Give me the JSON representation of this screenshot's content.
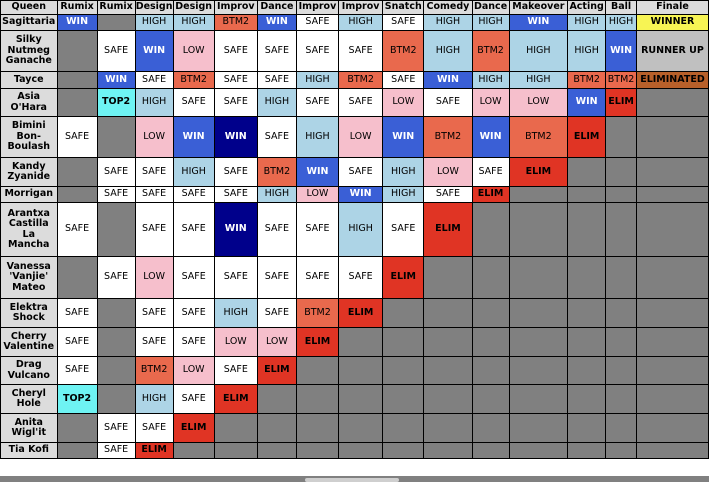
{
  "headers": [
    "Queen",
    "Rumix",
    "Rumix",
    "Design",
    "Design",
    "Improv",
    "Dance",
    "Improv",
    "Improv",
    "Snatch",
    "Comedy",
    "Dance",
    "Makeover",
    "Acting",
    "Ball",
    "Finale"
  ],
  "col_widths": [
    55,
    39,
    37,
    37,
    40,
    42,
    38,
    41,
    43,
    40,
    47,
    36,
    57,
    37,
    30,
    70
  ],
  "rows": [
    {
      "name": "Sagittaria",
      "h": 16,
      "cells": [
        "WIN",
        "GRAY",
        "HIGH",
        "HIGH",
        "BTM2",
        "WIN",
        "SAFE",
        "HIGH",
        "SAFE",
        "HIGH",
        "HIGH",
        "WIN",
        "HIGH",
        "HIGH",
        "WINNER"
      ]
    },
    {
      "name": "Silky\nNutmeg\nGanache",
      "h": 41,
      "cells": [
        "GRAY",
        "SAFE",
        "WIN",
        "LOW",
        "SAFE",
        "SAFE",
        "SAFE",
        "SAFE",
        "BTM2",
        "HIGH",
        "BTM2",
        "HIGH",
        "HIGH",
        "WIN",
        "RUNNER UP"
      ]
    },
    {
      "name": "Tayce",
      "h": 17,
      "cells": [
        "GRAY",
        "WIN",
        "SAFE",
        "BTM2",
        "SAFE",
        "SAFE",
        "HIGH",
        "BTM2",
        "SAFE",
        "WIN",
        "HIGH",
        "HIGH",
        "BTM2",
        "BTM2",
        "ELIMINATED"
      ]
    },
    {
      "name": "Asia\nO'Hara",
      "h": 28,
      "cells": [
        "GRAY",
        "TOP2",
        "HIGH",
        "SAFE",
        "SAFE",
        "HIGH",
        "SAFE",
        "SAFE",
        "LOW",
        "SAFE",
        "LOW",
        "LOW",
        "WIN",
        "ELIM",
        "GRAY"
      ]
    },
    {
      "name": "Bimini\nBon-\nBoulash",
      "h": 41,
      "cells": [
        "SAFE",
        "GRAY",
        "LOW",
        "WIN",
        "STARWIN",
        "SAFE",
        "HIGH",
        "LOW",
        "WIN",
        "BTM2",
        "WIN",
        "BTM2",
        "ELIM",
        "GRAY",
        "GRAY"
      ]
    },
    {
      "name": "Kandy\nZyanide",
      "h": 29,
      "cells": [
        "GRAY",
        "SAFE",
        "SAFE",
        "HIGH",
        "SAFE",
        "BTM2",
        "WIN",
        "SAFE",
        "HIGH",
        "LOW",
        "SAFE",
        "ELIM",
        "GRAY",
        "GRAY",
        "GRAY"
      ]
    },
    {
      "name": "Morrigan",
      "h": 16,
      "cells": [
        "GRAY",
        "SAFE",
        "SAFE",
        "SAFE",
        "SAFE",
        "HIGH",
        "LOW",
        "WIN",
        "HIGH",
        "SAFE",
        "ELIM",
        "GRAY",
        "GRAY",
        "GRAY",
        "GRAY"
      ]
    },
    {
      "name": "Arantxa\nCastilla\nLa\nMancha",
      "h": 54,
      "cells": [
        "SAFE",
        "GRAY",
        "SAFE",
        "SAFE",
        "STARWIN",
        "SAFE",
        "SAFE",
        "HIGH",
        "SAFE",
        "ELIM",
        "GRAY",
        "GRAY",
        "GRAY",
        "GRAY",
        "GRAY"
      ]
    },
    {
      "name": "Vanessa\n'Vanjie'\nMateo",
      "h": 42,
      "cells": [
        "GRAY",
        "SAFE",
        "LOW",
        "SAFE",
        "SAFE",
        "SAFE",
        "SAFE",
        "SAFE",
        "ELIM",
        "GRAY",
        "GRAY",
        "GRAY",
        "GRAY",
        "GRAY",
        "GRAY"
      ]
    },
    {
      "name": "Elektra\nShock",
      "h": 29,
      "cells": [
        "SAFE",
        "GRAY",
        "SAFE",
        "SAFE",
        "HIGH",
        "SAFE",
        "BTM2",
        "ELIM",
        "GRAY",
        "GRAY",
        "GRAY",
        "GRAY",
        "GRAY",
        "GRAY",
        "GRAY"
      ]
    },
    {
      "name": "Cherry\nValentine",
      "h": 29,
      "cells": [
        "SAFE",
        "GRAY",
        "SAFE",
        "SAFE",
        "LOW",
        "LOW",
        "ELIM",
        "GRAY",
        "GRAY",
        "GRAY",
        "GRAY",
        "GRAY",
        "GRAY",
        "GRAY",
        "GRAY"
      ]
    },
    {
      "name": "Drag\nVulcano",
      "h": 28,
      "cells": [
        "SAFE",
        "GRAY",
        "BTM2",
        "LOW",
        "SAFE",
        "ELIM",
        "GRAY",
        "GRAY",
        "GRAY",
        "GRAY",
        "GRAY",
        "GRAY",
        "GRAY",
        "GRAY",
        "GRAY"
      ]
    },
    {
      "name": "Cheryl\nHole",
      "h": 29,
      "cells": [
        "TOP2",
        "GRAY",
        "HIGH",
        "SAFE",
        "ELIM",
        "GRAY",
        "GRAY",
        "GRAY",
        "GRAY",
        "GRAY",
        "GRAY",
        "GRAY",
        "GRAY",
        "GRAY",
        "GRAY"
      ]
    },
    {
      "name": "Anita\nWigl'it",
      "h": 29,
      "cells": [
        "GRAY",
        "SAFE",
        "SAFE",
        "ELIM",
        "GRAY",
        "GRAY",
        "GRAY",
        "GRAY",
        "GRAY",
        "GRAY",
        "GRAY",
        "GRAY",
        "GRAY",
        "GRAY",
        "GRAY"
      ]
    },
    {
      "name": "Tia Kofi",
      "h": 16,
      "cells": [
        "GRAY",
        "SAFE",
        "ELIM",
        "GRAY",
        "GRAY",
        "GRAY",
        "GRAY",
        "GRAY",
        "GRAY",
        "GRAY",
        "GRAY",
        "GRAY",
        "GRAY",
        "GRAY",
        "GRAY"
      ]
    }
  ],
  "labels": {
    "WIN": "WIN",
    "STARWIN": "WIN",
    "TOP2": "TOP2",
    "HIGH": "HIGH",
    "SAFE": "SAFE",
    "LOW": "LOW",
    "BTM2": "BTM2",
    "ELIM": "ELIM",
    "GRAY": "",
    "WINNER": "WINNER",
    "RUNNER UP": "RUNNER UP",
    "ELIMINATED": "ELIMINATED"
  },
  "colors": {
    "win": "#3a5fd6",
    "star_win": "#00008b",
    "top2": "#6ef3f3",
    "high": "#add4e6",
    "safe": "#ffffff",
    "low": "#f6bfcc",
    "btm2": "#e9694d",
    "elim": "#e03424",
    "na": "#808080",
    "winner": "#f7f454",
    "runner_up": "#c0c0c0",
    "eliminated": "#b8602a"
  }
}
